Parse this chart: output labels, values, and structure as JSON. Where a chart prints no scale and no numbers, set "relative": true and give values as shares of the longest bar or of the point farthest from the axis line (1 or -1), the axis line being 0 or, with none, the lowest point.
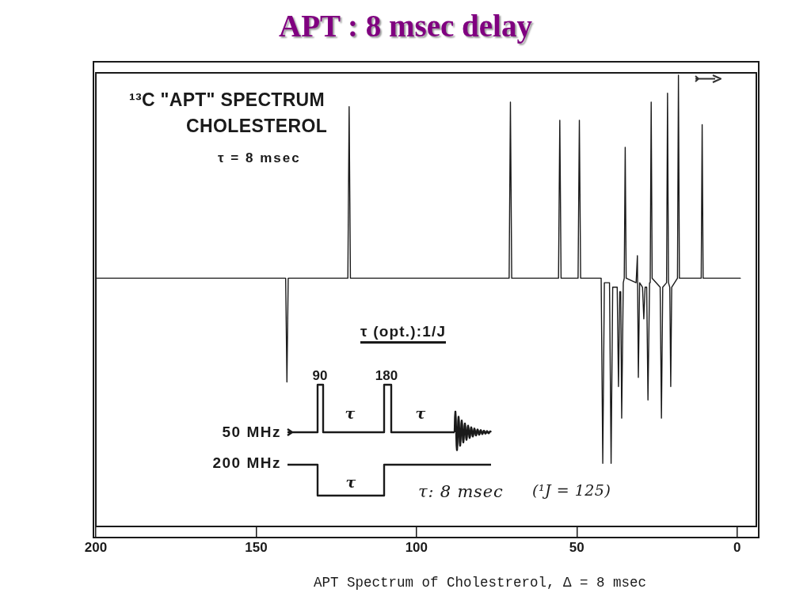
{
  "chart_data": {
    "type": "line",
    "title": "APT : 8 msec delay",
    "xlim": [
      200,
      -6
    ],
    "xticks": [
      200,
      150,
      100,
      50,
      0
    ],
    "relative": true,
    "marker": "none",
    "line_style": "solid",
    "x": [
      200,
      140.8,
      140.4,
      140.0,
      121.4,
      121.0,
      120.6,
      71.1,
      70.7,
      70.3,
      55.7,
      55.3,
      54.9,
      49.6,
      49.2,
      48.8,
      42.4,
      41.9,
      41.4,
      39.8,
      39.3,
      38.8,
      37.4,
      37.0,
      36.6,
      36.3,
      36.0,
      35.5,
      35.2,
      34.9,
      34.6,
      31.5,
      31.1,
      30.8,
      30.4,
      29.5,
      29.1,
      28.7,
      28.2,
      27.8,
      27.3,
      27.1,
      26.8,
      26.5,
      24.0,
      23.6,
      23.2,
      22.0,
      21.7,
      21.4,
      21.0,
      20.7,
      20.4,
      18.6,
      18.3,
      18.0,
      11.2,
      10.9,
      10.6,
      -1
    ],
    "series": [
      {
        "color": "#1a1a1a",
        "values": [
          0.55,
          0.55,
          0.32,
          0.55,
          0.55,
          0.93,
          0.55,
          0.55,
          0.94,
          0.55,
          0.55,
          0.9,
          0.55,
          0.55,
          0.9,
          0.55,
          0.55,
          0.14,
          0.54,
          0.54,
          0.14,
          0.53,
          0.53,
          0.31,
          0.52,
          0.52,
          0.24,
          0.54,
          0.55,
          0.84,
          0.55,
          0.54,
          0.6,
          0.33,
          0.54,
          0.53,
          0.46,
          0.53,
          0.53,
          0.28,
          0.54,
          0.55,
          0.94,
          0.55,
          0.53,
          0.24,
          0.53,
          0.54,
          0.96,
          0.54,
          0.53,
          0.31,
          0.53,
          0.55,
          1,
          0.55,
          0.55,
          0.89,
          0.55,
          0.55
        ]
      }
    ],
    "annotations": [
      "¹³C \"APT\" SPECTRUM",
      "CHOLESTEROL",
      "τ = 8 msec",
      "τ (opt.):1/J",
      "90",
      "180",
      "50 MHz",
      "200 MHz",
      "τ",
      "τ",
      "τ",
      "τ: 8 msec",
      "(¹J = 125)",
      "APT Spectrum of Cholestrerol, Δ = 8 msec"
    ]
  }
}
